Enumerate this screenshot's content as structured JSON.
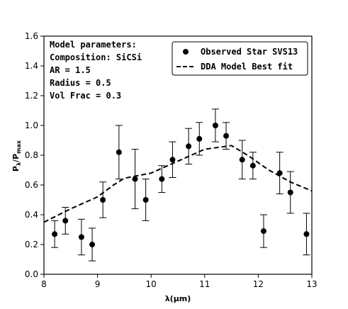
{
  "chart_data": {
    "type": "scatter",
    "xlabel": "λ(μm)",
    "ylabel_main": "P",
    "ylabel_sub1": "λ",
    "ylabel_sep": "/P",
    "ylabel_sub2": "max",
    "xlim": [
      8,
      13
    ],
    "ylim": [
      0,
      1.6
    ],
    "x_ticks": [
      "8",
      "9",
      "10",
      "11",
      "12",
      "13"
    ],
    "y_ticks": [
      "0.0",
      "0.2",
      "0.4",
      "0.6",
      "0.8",
      "1.0",
      "1.2",
      "1.4",
      "1.6"
    ],
    "annotation": [
      "Model parameters:",
      "Composition: SiCSi",
      "AR = 1.5",
      "Radius = 0.5",
      "Vol Frac = 0.3"
    ],
    "legend_position": "upper-right",
    "series": [
      {
        "name": "Observed Star SVS13",
        "style": "markers-with-errorbars",
        "color": "#000000",
        "points": [
          {
            "x": 8.2,
            "y": 0.27,
            "err": 0.09
          },
          {
            "x": 8.4,
            "y": 0.36,
            "err": 0.09
          },
          {
            "x": 8.7,
            "y": 0.25,
            "err": 0.12
          },
          {
            "x": 8.9,
            "y": 0.2,
            "err": 0.11
          },
          {
            "x": 9.1,
            "y": 0.5,
            "err": 0.12
          },
          {
            "x": 9.4,
            "y": 0.82,
            "err": 0.18
          },
          {
            "x": 9.7,
            "y": 0.64,
            "err": 0.2
          },
          {
            "x": 9.9,
            "y": 0.5,
            "err": 0.14
          },
          {
            "x": 10.2,
            "y": 0.64,
            "err": 0.09
          },
          {
            "x": 10.4,
            "y": 0.77,
            "err": 0.12
          },
          {
            "x": 10.7,
            "y": 0.86,
            "err": 0.12
          },
          {
            "x": 10.9,
            "y": 0.91,
            "err": 0.11
          },
          {
            "x": 11.2,
            "y": 1.0,
            "err": 0.11
          },
          {
            "x": 11.4,
            "y": 0.93,
            "err": 0.09
          },
          {
            "x": 11.7,
            "y": 0.77,
            "err": 0.13
          },
          {
            "x": 11.9,
            "y": 0.73,
            "err": 0.09
          },
          {
            "x": 12.1,
            "y": 0.29,
            "err": 0.11
          },
          {
            "x": 12.4,
            "y": 0.68,
            "err": 0.14
          },
          {
            "x": 12.6,
            "y": 0.55,
            "err": 0.14
          },
          {
            "x": 12.9,
            "y": 0.27,
            "err": 0.14
          }
        ]
      },
      {
        "name": "DDA Model Best fit",
        "style": "dashed-line",
        "color": "#000000",
        "points": [
          {
            "x": 8.0,
            "y": 0.35
          },
          {
            "x": 8.5,
            "y": 0.44
          },
          {
            "x": 9.0,
            "y": 0.52
          },
          {
            "x": 9.3,
            "y": 0.6
          },
          {
            "x": 9.5,
            "y": 0.645
          },
          {
            "x": 10.0,
            "y": 0.68
          },
          {
            "x": 10.5,
            "y": 0.76
          },
          {
            "x": 11.0,
            "y": 0.84
          },
          {
            "x": 11.5,
            "y": 0.865
          },
          {
            "x": 11.8,
            "y": 0.8
          },
          {
            "x": 12.2,
            "y": 0.7
          },
          {
            "x": 12.6,
            "y": 0.62
          },
          {
            "x": 13.0,
            "y": 0.56
          }
        ]
      }
    ]
  }
}
